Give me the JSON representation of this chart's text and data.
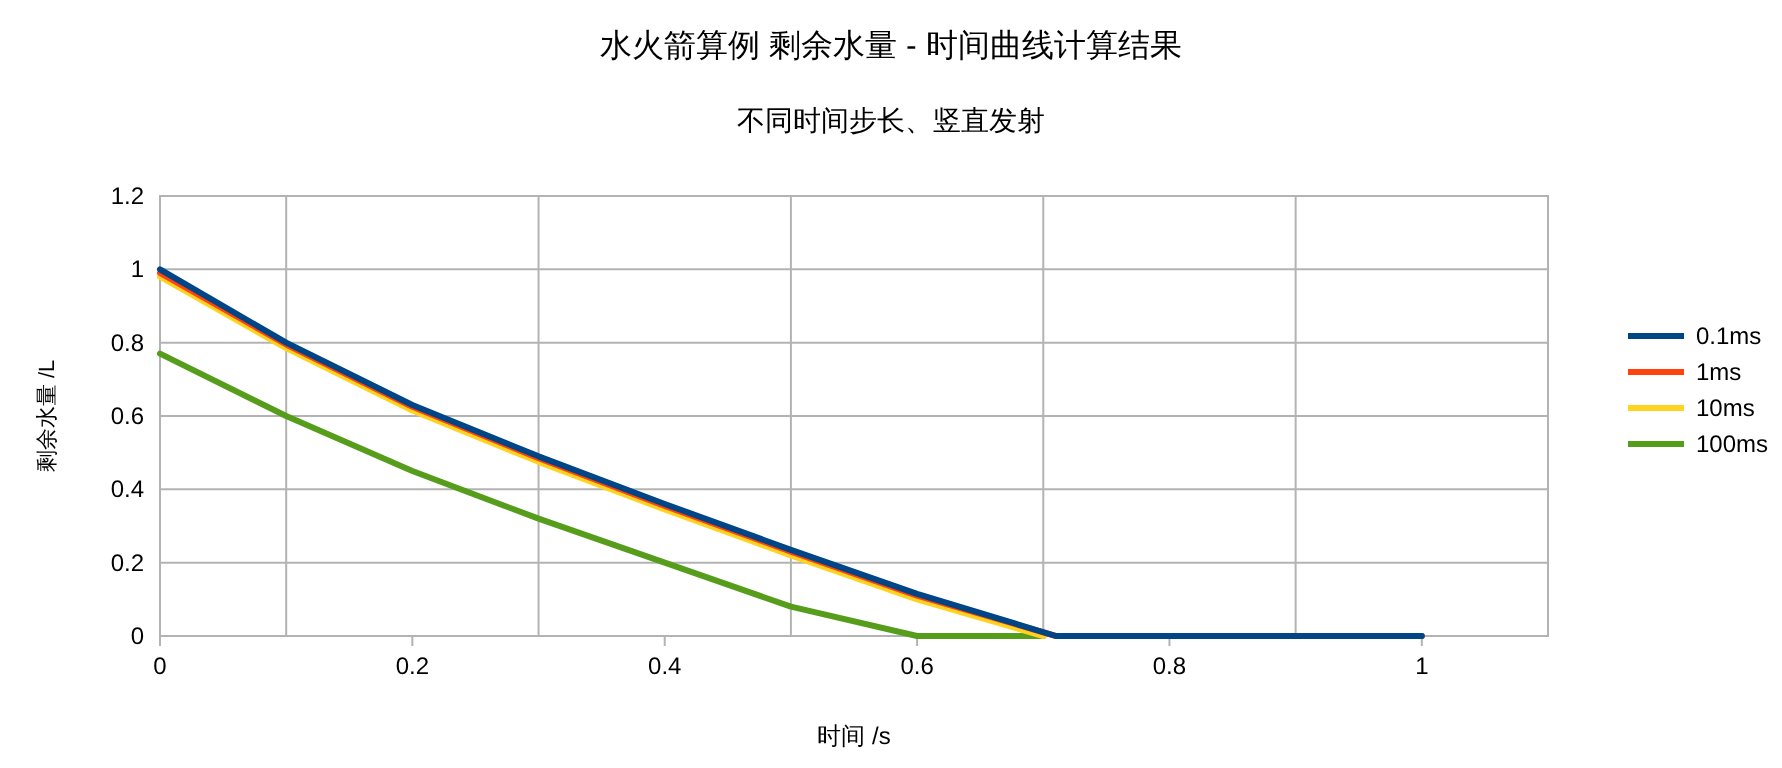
{
  "chart_data": {
    "type": "line",
    "title": "水火箭算例 剩余水量 - 时间曲线计算结果",
    "subtitle": "不同时间步长、竖直发射",
    "xlabel": "时间 /s",
    "ylabel": "剩余水量 /L",
    "xlim": [
      0,
      1.1
    ],
    "ylim": [
      0,
      1.2
    ],
    "xticks": [
      0,
      {
        "value": 0.1,
        "label": null
      },
      0.2,
      {
        "value": 0.3,
        "label": null
      },
      0.4,
      {
        "value": 0.5,
        "label": null
      },
      0.6,
      {
        "value": 0.7,
        "label": null
      },
      0.8,
      {
        "value": 0.9,
        "label": null
      },
      1,
      {
        "value": 1.1,
        "label": null
      }
    ],
    "yticks": [
      0,
      0.2,
      0.4,
      0.6,
      0.8,
      1,
      1.2
    ],
    "grid": true,
    "legend": "right",
    "line_style": "solid",
    "marker": "none",
    "series": [
      {
        "name": "0.1ms",
        "color": "#004586",
        "x": [
          0,
          0.1,
          0.2,
          0.3,
          0.4,
          0.5,
          0.6,
          0.71,
          1
        ],
        "values": [
          1,
          0.8,
          0.63,
          0.49,
          0.36,
          0.235,
          0.115,
          0,
          0
        ]
      },
      {
        "name": "1ms",
        "color": "#ff420e",
        "x": [
          0,
          0.1,
          0.2,
          0.3,
          0.4,
          0.5,
          0.6,
          0.71,
          1
        ],
        "values": [
          0.99,
          0.795,
          0.625,
          0.485,
          0.355,
          0.23,
          0.11,
          0,
          0
        ]
      },
      {
        "name": "10ms",
        "color": "#ffd320",
        "x": [
          0,
          0.1,
          0.2,
          0.3,
          0.4,
          0.5,
          0.6,
          0.7
        ],
        "values": [
          0.98,
          0.785,
          0.615,
          0.475,
          0.345,
          0.22,
          0.1,
          0
        ]
      },
      {
        "name": "100ms",
        "color": "#579d1c",
        "x": [
          0,
          0.1,
          0.2,
          0.3,
          0.4,
          0.5,
          0.6,
          0.7
        ],
        "values": [
          0.77,
          0.6,
          0.45,
          0.32,
          0.2,
          0.08,
          0,
          0
        ]
      }
    ]
  }
}
